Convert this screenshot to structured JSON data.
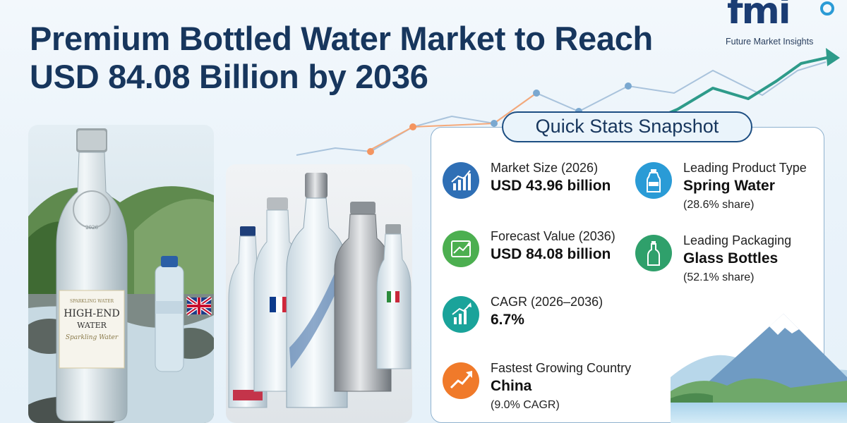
{
  "header": {
    "title_line1": "Premium Bottled Water Market to Reach",
    "title_line2": "USD 84.08 Billion by 2036"
  },
  "logo": {
    "mark": "fmi",
    "name": "Future Market Insights"
  },
  "product_photo": {
    "label_top": "SPARKLING WATER",
    "brand_line1": "HIGH-END",
    "brand_line2": "WATER",
    "brand_script": "Sparkling Water",
    "year": "2026"
  },
  "snapshot": {
    "heading": "Quick Stats Snapshot",
    "stats": [
      {
        "label": "Market Size (2026)",
        "value": "USD 43.96 billion",
        "sub": "",
        "icon": "bar-chart-icon",
        "color": "#2f6fb5"
      },
      {
        "label": "Forecast Value (2036)",
        "value": "USD 84.08 billion",
        "sub": "",
        "icon": "growth-arrows-icon",
        "color": "#4caf50"
      },
      {
        "label": "CAGR (2026–2036)",
        "value": "6.7%",
        "sub": "",
        "icon": "chart-growth-icon",
        "color": "#1aa39a"
      },
      {
        "label": "Fastest Growing Country",
        "value": "China",
        "sub": "(9.0% CAGR)",
        "icon": "trend-arrow-icon",
        "color": "#f07a2a"
      },
      {
        "label": "Leading Product Type",
        "value": "Spring Water",
        "sub": "(28.6% share)",
        "icon": "water-bottle-icon",
        "color": "#2a9bd6"
      },
      {
        "label": "Leading Packaging",
        "value": "Glass Bottles",
        "sub": "(52.1% share)",
        "icon": "glass-bottle-icon",
        "color": "#2fa06b"
      }
    ]
  }
}
